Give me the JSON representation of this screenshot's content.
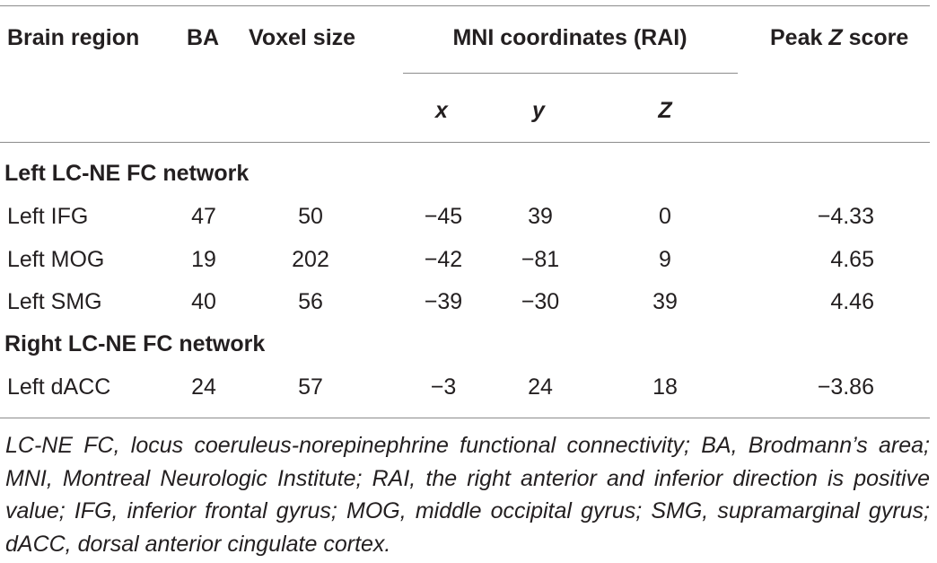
{
  "table": {
    "headers": {
      "brain_region": "Brain region",
      "ba": "BA",
      "voxel_size": "Voxel size",
      "mni": "MNI coordinates (RAI)",
      "peak_prefix": "Peak ",
      "peak_z": "Z",
      "peak_suffix": " score",
      "x": "x",
      "y": "y",
      "z": "Z"
    },
    "sections": [
      {
        "title": "Left LC-NE FC network",
        "rows": [
          {
            "region": "Left IFG",
            "ba": "47",
            "voxel": "50",
            "x": "−45",
            "y": "39",
            "z": "0",
            "peak": "−4.33"
          },
          {
            "region": "Left MOG",
            "ba": "19",
            "voxel": "202",
            "x": "−42",
            "y": "−81",
            "z": "9",
            "peak": "4.65"
          },
          {
            "region": "Left SMG",
            "ba": "40",
            "voxel": "56",
            "x": "−39",
            "y": "−30",
            "z": "39",
            "peak": "4.46"
          }
        ]
      },
      {
        "title": "Right LC-NE FC network",
        "rows": [
          {
            "region": "Left dACC",
            "ba": "24",
            "voxel": "57",
            "x": "−3",
            "y": "24",
            "z": "18",
            "peak": "−3.86"
          }
        ]
      }
    ],
    "footnote": "LC-NE FC, locus coeruleus-norepinephrine functional connectivity; BA, Brodmann’s area; MNI, Montreal Neurologic Institute; RAI, the right anterior and inferior direction is positive value; IFG, inferior frontal gyrus; MOG, middle occipital gyrus; SMG, supramarginal gyrus; dACC, dorsal anterior cingulate cortex."
  }
}
